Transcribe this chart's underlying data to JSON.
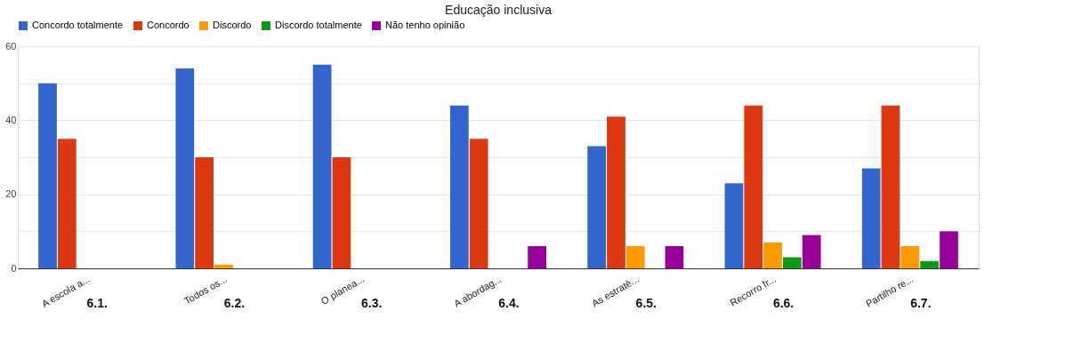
{
  "chart_data": {
    "type": "bar",
    "title": "Educação inclusiva",
    "categories": [
      "A escola a...",
      "Todos os...",
      "O planea...",
      "A abordag...",
      "As estratè...",
      "Recorro fr...",
      "Partilho re..."
    ],
    "series": [
      {
        "name": "Concordo totalmente",
        "color": "#3366cc",
        "values": [
          50,
          54,
          55,
          44,
          33,
          23,
          27
        ]
      },
      {
        "name": "Concordo",
        "color": "#dc3912",
        "values": [
          35,
          30,
          30,
          35,
          41,
          44,
          44
        ]
      },
      {
        "name": "Discordo",
        "color": "#ff9900",
        "values": [
          0,
          1,
          0,
          0,
          6,
          7,
          6
        ]
      },
      {
        "name": "Discordo totalmente",
        "color": "#109618",
        "values": [
          0,
          0,
          0,
          0,
          0,
          3,
          2
        ]
      },
      {
        "name": "Não tenho opinião",
        "color": "#990099",
        "values": [
          0,
          0,
          0,
          6,
          6,
          9,
          10
        ]
      }
    ],
    "ylim": [
      0,
      60
    ],
    "yticks": [
      0,
      {
        "value": 10,
        "label": null
      },
      20,
      {
        "value": 30,
        "label": null
      },
      40,
      {
        "value": 50,
        "label": null
      },
      60
    ],
    "grid": "y",
    "legend": "top",
    "annotations": [
      "6.1.",
      "6.2.",
      "6.3.",
      "6.4.",
      "6.5.",
      "6.6.",
      "6.7."
    ]
  }
}
